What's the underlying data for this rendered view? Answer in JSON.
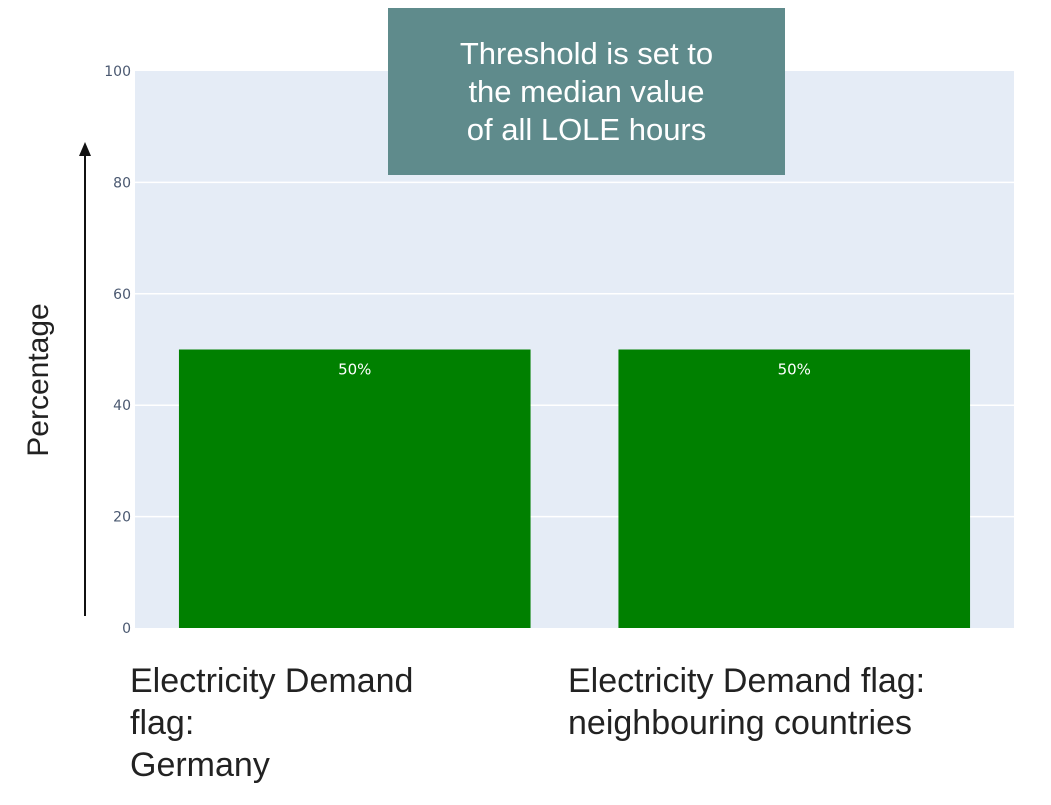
{
  "chart_data": {
    "type": "bar",
    "categories": [
      "Electricity Demand flag: Germany",
      "Electricity Demand flag: neighbouring countries"
    ],
    "category_lines": [
      [
        "Electricity Demand",
        "flag:",
        "Germany"
      ],
      [
        "Electricity Demand flag:",
        "neighbouring countries"
      ]
    ],
    "values": [
      50,
      50
    ],
    "data_labels": [
      "50%",
      "50%"
    ],
    "ylabel": "Percentage",
    "ylim": [
      0,
      100
    ],
    "yticks": [
      "0",
      "20",
      "40",
      "60",
      "80",
      "100"
    ],
    "grid": true,
    "annotation_lines": [
      "Threshold is set to",
      "the median value",
      "of all LOLE hours"
    ]
  },
  "colors": {
    "bar": "#008000",
    "plot_bg": "#e5ecf6",
    "annotation_bg": "#5f8b8c"
  }
}
